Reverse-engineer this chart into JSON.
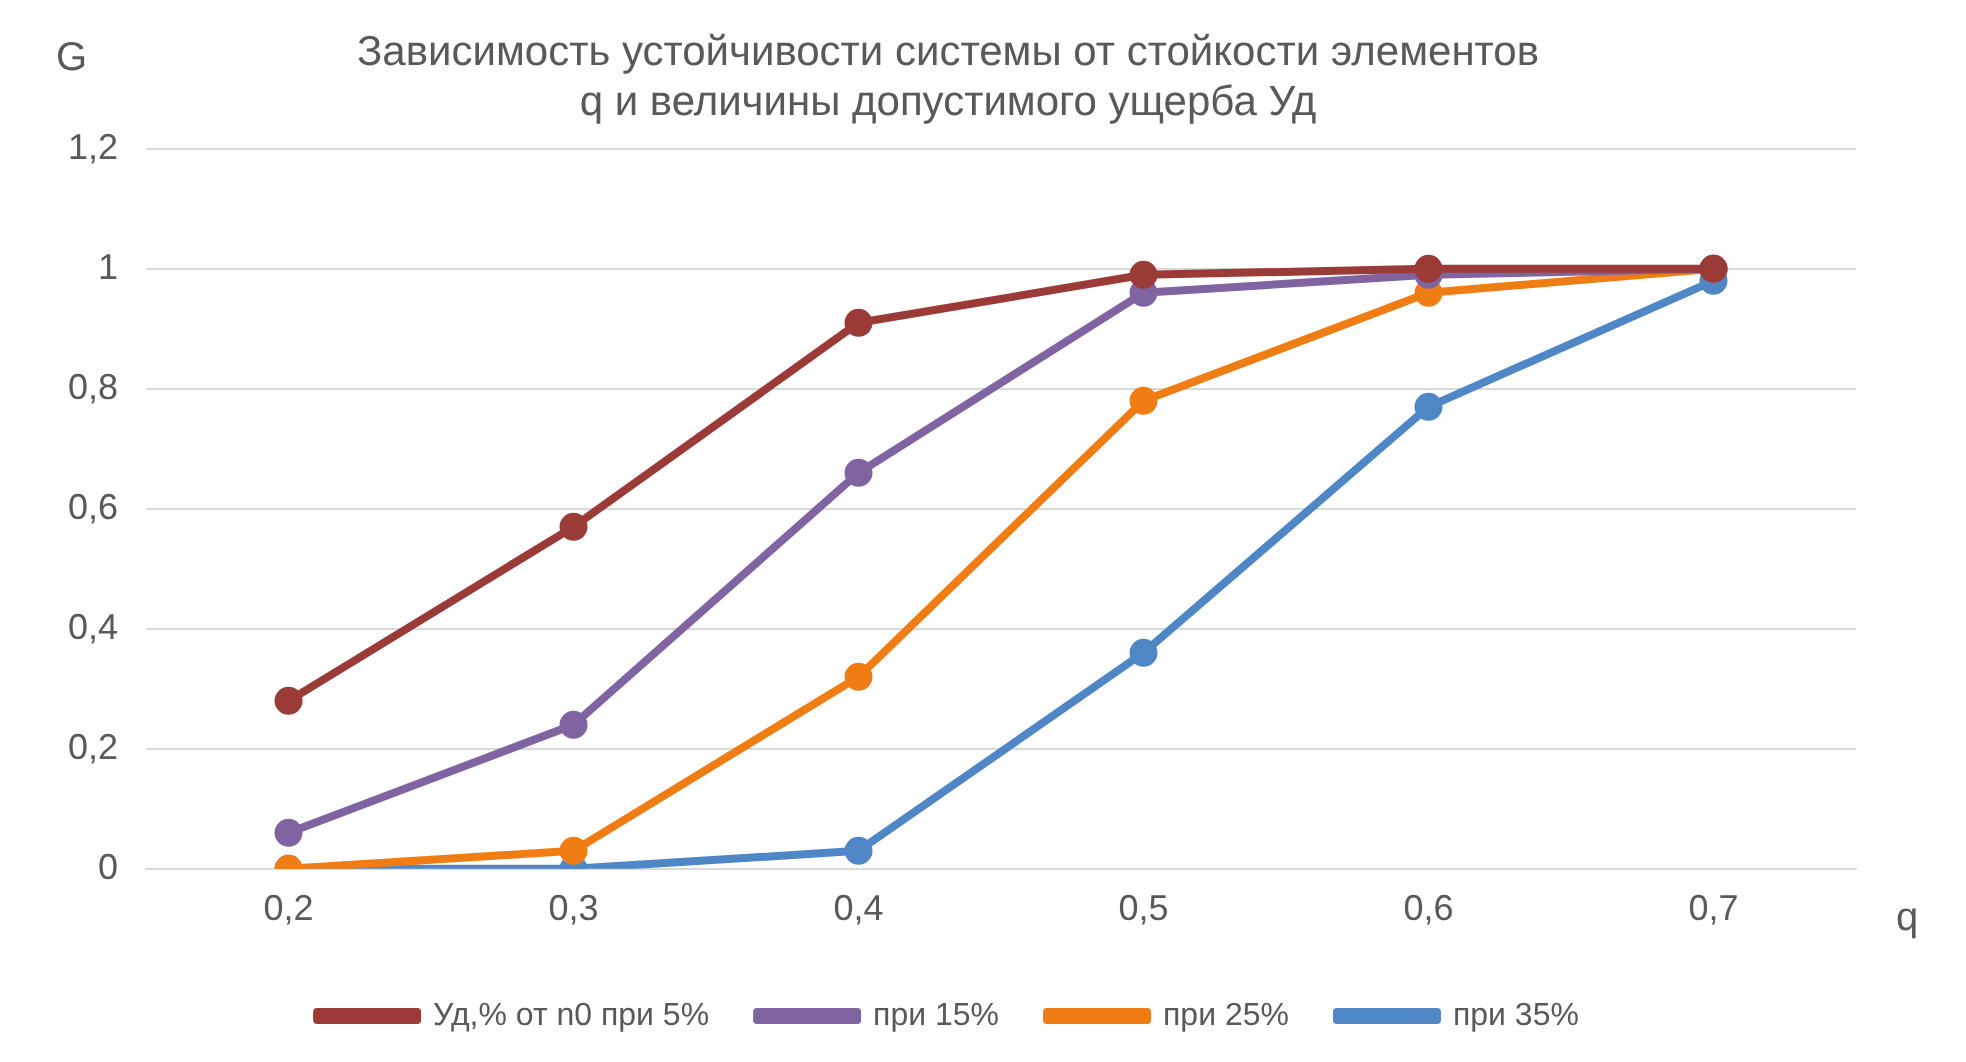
{
  "chart_data": {
    "type": "line",
    "title": "Зависимость устойчивости системы от стойкости элементов\nq и величины допустимого ущерба Уд",
    "xlabel": "q",
    "ylabel": "G",
    "categories": [
      "0,2",
      "0,3",
      "0,4",
      "0,5",
      "0,6",
      "0,7"
    ],
    "series": [
      {
        "name": "Уд,% от n0 при 5%",
        "color": "#9b3b38",
        "values": [
          0.28,
          0.57,
          0.91,
          0.99,
          1.0,
          1.0
        ]
      },
      {
        "name": "при 15%",
        "color": "#8064a2",
        "values": [
          0.06,
          0.24,
          0.66,
          0.96,
          0.99,
          1.0
        ]
      },
      {
        "name": "при 25%",
        "color": "#f07c14",
        "values": [
          0,
          0.03,
          0.32,
          0.78,
          0.96,
          1.0
        ]
      },
      {
        "name": "при 35%",
        "color": "#4f86c6",
        "values": [
          0,
          0,
          0.03,
          0.36,
          0.77,
          0.98
        ]
      }
    ],
    "ylim": [
      0,
      1.2
    ],
    "yticks": [
      {
        "value": 0,
        "label": "0"
      },
      {
        "value": 0.2,
        "label": "0,2"
      },
      {
        "value": 0.4,
        "label": "0,4"
      },
      {
        "value": 0.6,
        "label": "0,6"
      },
      {
        "value": 0.8,
        "label": "0,8"
      },
      {
        "value": 1,
        "label": "1"
      },
      {
        "value": 1.2,
        "label": "1,2"
      }
    ],
    "grid": "y",
    "legend": "bottom",
    "marker": "circle",
    "line_style": "solid"
  }
}
